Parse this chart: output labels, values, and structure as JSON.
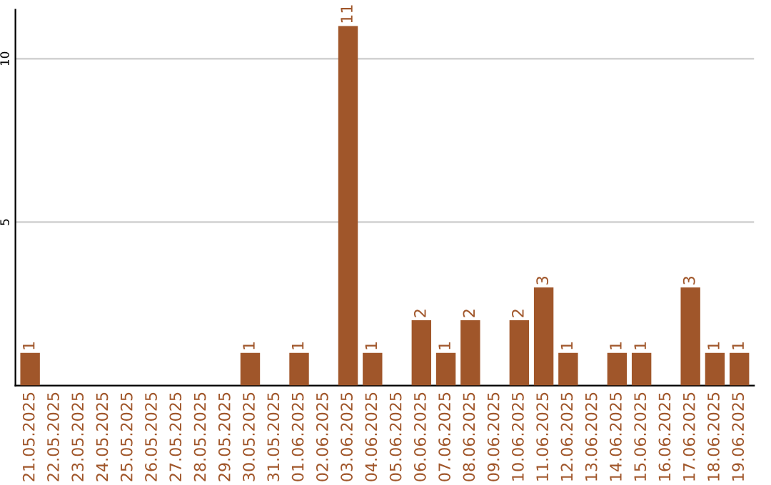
{
  "chart_data": {
    "type": "bar",
    "categories": [
      "21.05.2025",
      "22.05.2025",
      "23.05.2025",
      "24.05.2025",
      "25.05.2025",
      "26.05.2025",
      "27.05.2025",
      "28.05.2025",
      "29.05.2025",
      "30.05.2025",
      "31.05.2025",
      "01.06.2025",
      "02.06.2025",
      "03.06.2025",
      "04.06.2025",
      "05.06.2025",
      "06.06.2025",
      "07.06.2025",
      "08.06.2025",
      "09.06.2025",
      "10.06.2025",
      "11.06.2025",
      "12.06.2025",
      "13.06.2025",
      "14.06.2025",
      "15.06.2025",
      "16.06.2025",
      "17.06.2025",
      "18.06.2025",
      "19.06.2025"
    ],
    "values": [
      1,
      0,
      0,
      0,
      0,
      0,
      0,
      0,
      0,
      1,
      0,
      1,
      0,
      11,
      1,
      0,
      2,
      1,
      2,
      0,
      2,
      3,
      1,
      0,
      1,
      1,
      0,
      3,
      1,
      1
    ],
    "value_labels": [
      "1",
      null,
      null,
      null,
      null,
      null,
      null,
      null,
      null,
      "1",
      null,
      "1",
      null,
      "11",
      "1",
      null,
      "2",
      "1",
      "2",
      null,
      "2",
      "3",
      "1",
      null,
      "1",
      "1",
      null,
      "3",
      "1",
      "1"
    ],
    "color": "#a0562a",
    "ylim": [
      0,
      11.5
    ],
    "yticks": [
      5,
      10
    ],
    "grid": "y"
  }
}
